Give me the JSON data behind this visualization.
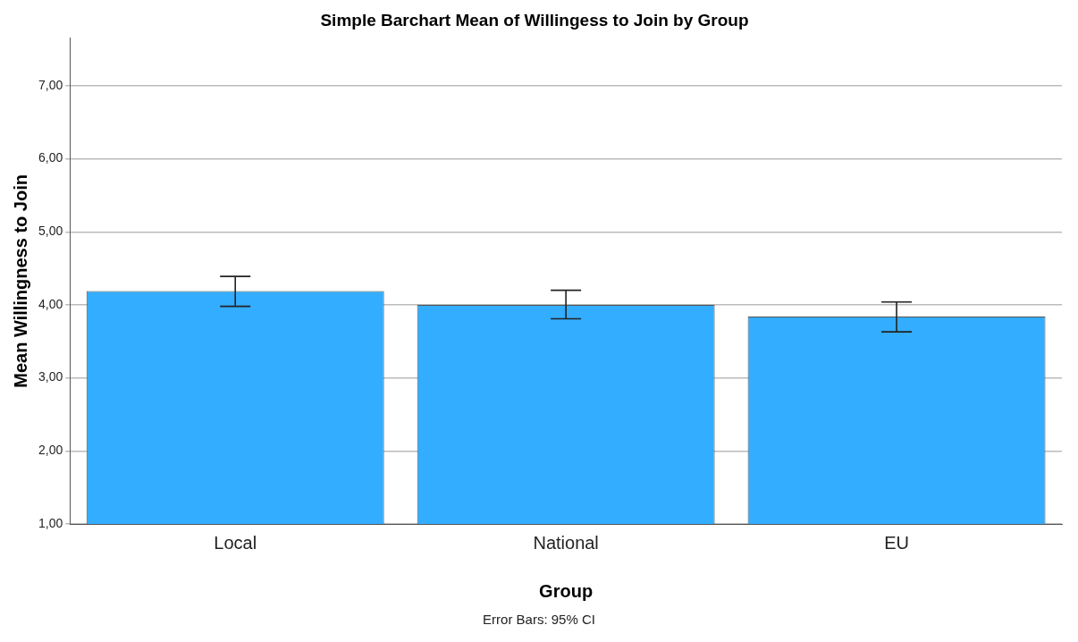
{
  "chart_data": {
    "type": "bar",
    "title": "Simple Barchart Mean of Willingess to Join by Group",
    "xlabel": "Group",
    "ylabel": "Mean Willingness to Join",
    "categories": [
      "Local",
      "National",
      "EU"
    ],
    "values": [
      4.19,
      4.0,
      3.84
    ],
    "errors": [
      [
        3.98,
        4.39
      ],
      [
        3.81,
        4.2
      ],
      [
        3.63,
        4.04
      ]
    ],
    "color": "#33adff",
    "ylim": [
      1,
      7.65
    ],
    "yticks": [
      {
        "value": 1,
        "label": "1,00"
      },
      {
        "value": 2,
        "label": "2,00"
      },
      {
        "value": 3,
        "label": "3,00"
      },
      {
        "value": 4,
        "label": "4,00"
      },
      {
        "value": 5,
        "label": "5,00"
      },
      {
        "value": 6,
        "label": "6,00"
      },
      {
        "value": 7,
        "label": "7,00"
      }
    ],
    "grid": "y",
    "legend": false,
    "annotations": [
      "Error Bars: 95% CI"
    ]
  }
}
